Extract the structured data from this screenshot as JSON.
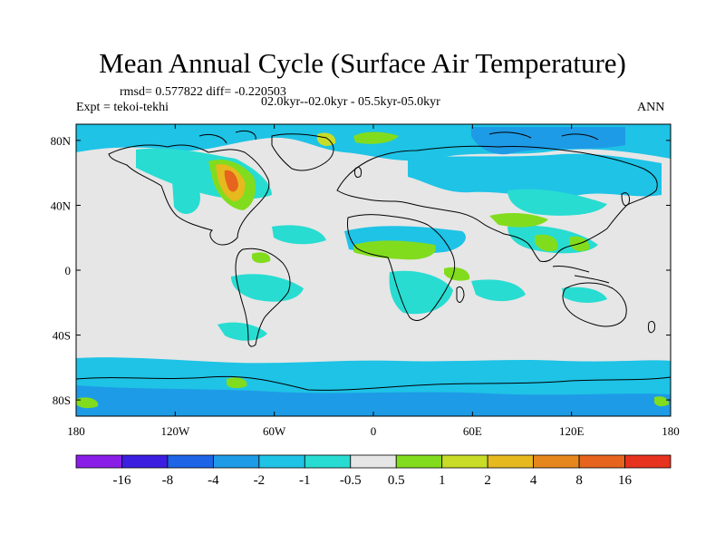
{
  "title": "Mean Annual Cycle (Surface Air Temperature)",
  "stats_text": "rmsd= 0.577822 diff= -0.220503",
  "experiment_text": "Expt = tekoi-tekhi",
  "period_text": "02.0kyr--02.0kyr - 05.5kyr-05.0kyr",
  "season_text": "ANN",
  "axes": {
    "lon_ticks": [
      "180",
      "120W",
      "60W",
      "0",
      "60E",
      "120E",
      "180"
    ],
    "lat_ticks": [
      "80N",
      "40N",
      "0",
      "40S",
      "80S"
    ]
  },
  "colorbar": {
    "labels": [
      "-16",
      "-8",
      "-4",
      "-2",
      "-1",
      "-0.5",
      "0.5",
      "1",
      "2",
      "4",
      "8",
      "16"
    ],
    "colors": [
      "#8a1ee8",
      "#3c1ee0",
      "#1e64e6",
      "#1e9be6",
      "#1ec3e6",
      "#28dcd2",
      "#e6e6e6",
      "#82dc1e",
      "#c8dc28",
      "#e6b91e",
      "#e6871e",
      "#e6641e",
      "#e6321e"
    ]
  },
  "colors": {
    "land_neutral": "#e6e6e6",
    "cool_light": "#28dcd2",
    "cool_mid": "#1ec3e6",
    "cool_deep": "#1e9be6",
    "warm_green": "#82dc1e",
    "warm_yellow": "#c8dc28",
    "warm_orange": "#e6b91e",
    "warm_red": "#e6641e",
    "coast": "#000000"
  }
}
